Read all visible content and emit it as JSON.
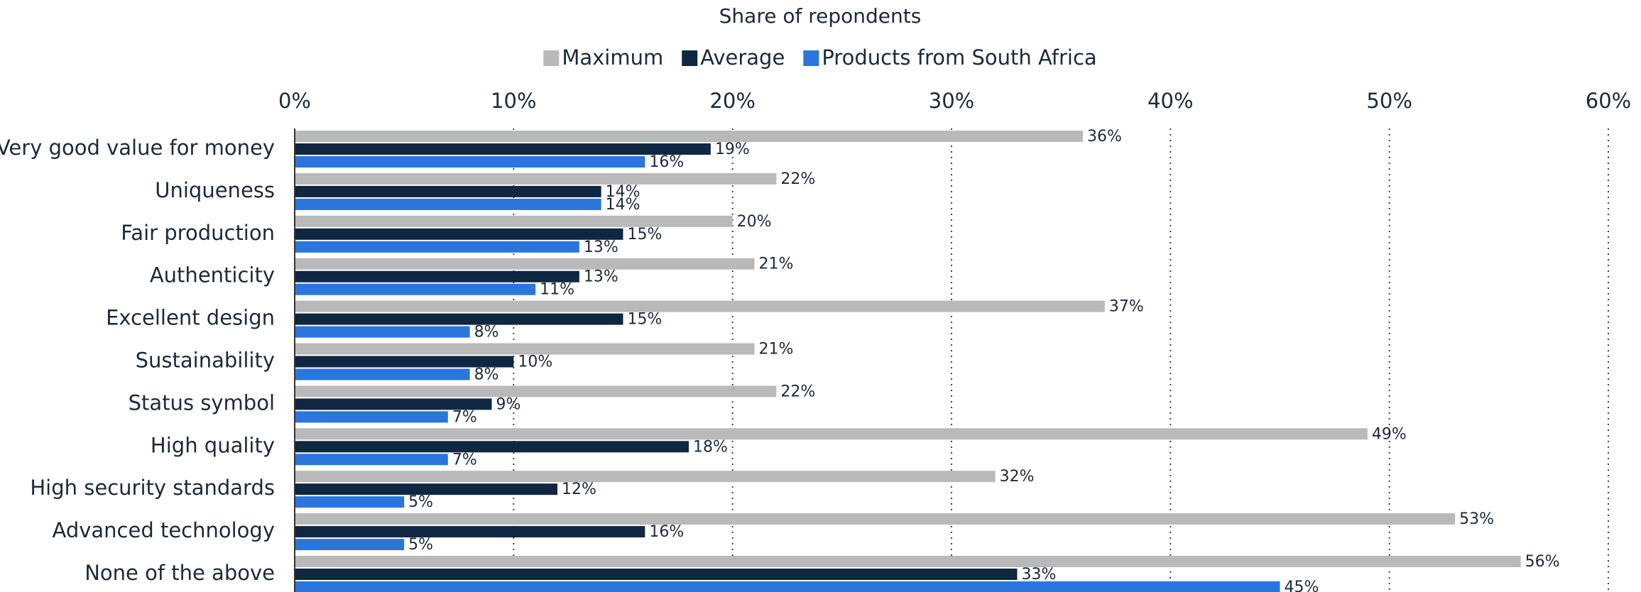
{
  "chart_data": {
    "type": "bar",
    "orientation": "horizontal",
    "title": "Share of repondents",
    "categories": [
      "Very good value for money",
      "Uniqueness",
      "Fair production",
      "Authenticity",
      "Excellent design",
      "Sustainability",
      "Status symbol",
      "High quality",
      "High security standards",
      "Advanced technology",
      "None of the above"
    ],
    "series": [
      {
        "name": "Maximum",
        "color": "#b9b9b9",
        "values": [
          36,
          22,
          20,
          21,
          37,
          21,
          22,
          49,
          32,
          53,
          56
        ],
        "value_labels": [
          "36%",
          "22%",
          "20%",
          "21%",
          "37%",
          "21%",
          "22%",
          "49%",
          "32%",
          "53%",
          "56%"
        ]
      },
      {
        "name": "Average",
        "color": "#0f2740",
        "values": [
          19,
          14,
          15,
          13,
          15,
          10,
          9,
          18,
          12,
          16,
          33
        ],
        "value_labels": [
          "19%",
          "14%",
          "15%",
          "13%",
          "15%",
          "10%",
          "9%",
          "18%",
          "12%",
          "16%",
          "33%"
        ]
      },
      {
        "name": "Products from South Africa",
        "color": "#2a76dd",
        "values": [
          16,
          14,
          13,
          11,
          8,
          8,
          7,
          7,
          5,
          5,
          45
        ],
        "value_labels": [
          "16%",
          "14%",
          "13%",
          "11%",
          "8%",
          "8%",
          "7%",
          "7%",
          "5%",
          "5%",
          "45%"
        ]
      }
    ],
    "xlim": [
      0,
      60
    ],
    "xticks": [
      {
        "value": 0,
        "label": "0%"
      },
      {
        "value": 10,
        "label": "10%"
      },
      {
        "value": 20,
        "label": "20%"
      },
      {
        "value": 30,
        "label": "30%"
      },
      {
        "value": 40,
        "label": "40%"
      },
      {
        "value": 50,
        "label": "50%"
      },
      {
        "value": 60,
        "label": "60%"
      }
    ],
    "grid": true,
    "legend": "top"
  }
}
